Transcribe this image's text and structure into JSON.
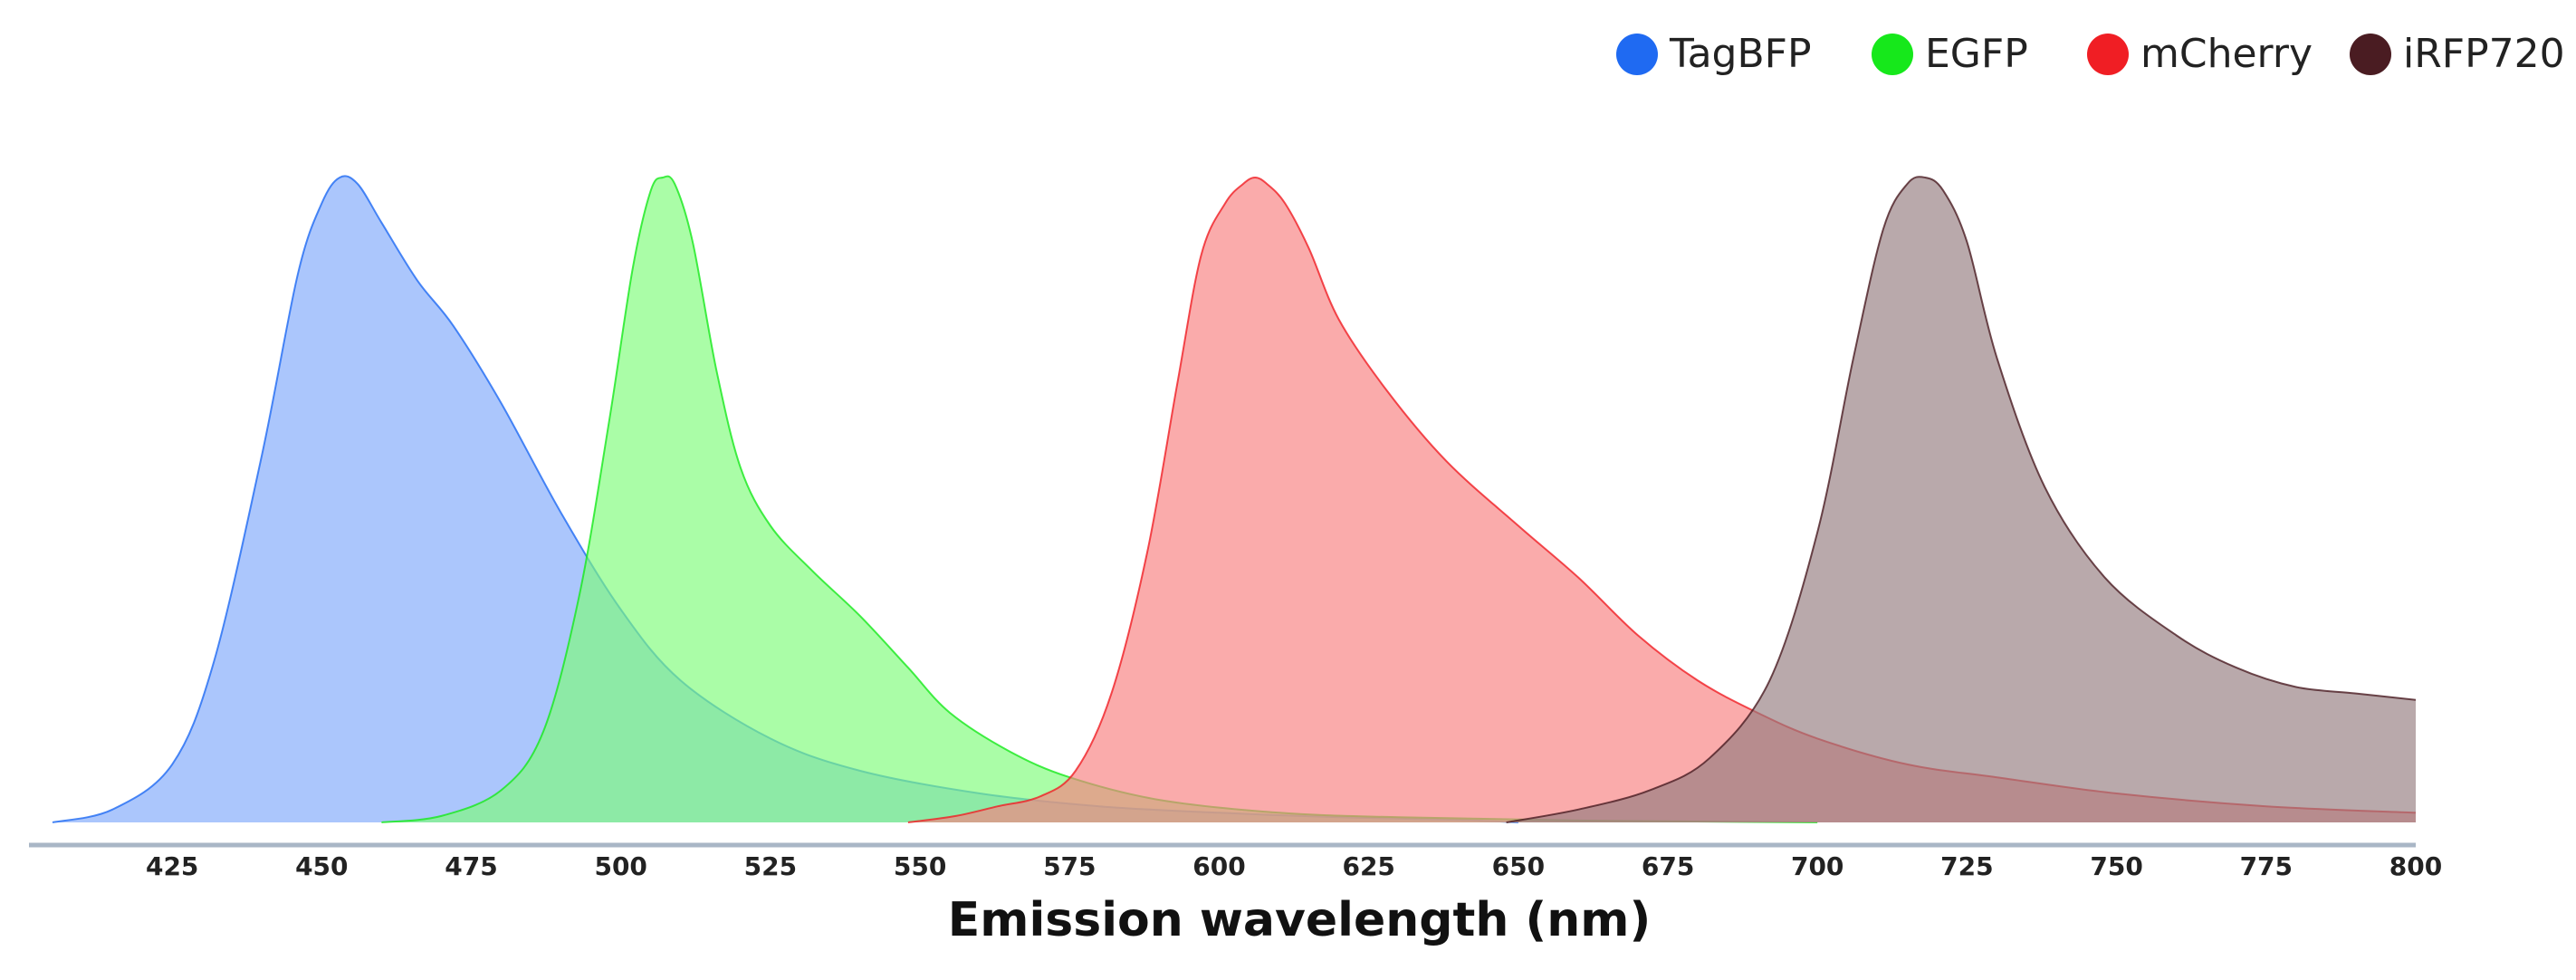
{
  "chart_data": {
    "type": "area",
    "title": "",
    "xlabel": "Emission wavelength (nm)",
    "ylabel": "",
    "xlim": [
      405,
      800
    ],
    "ylim": [
      0,
      1
    ],
    "x_ticks": [
      425,
      450,
      475,
      500,
      525,
      550,
      575,
      600,
      625,
      650,
      675,
      700,
      725,
      750,
      775,
      800
    ],
    "grid": false,
    "legend_position": "top-right",
    "series": [
      {
        "name": "TagBFP",
        "color": "#1f6af2",
        "fill": "#7fa8fb",
        "x": [
          405,
          415,
          425,
          432,
          440,
          446,
          450,
          453,
          456,
          460,
          466,
          472,
          480,
          490,
          500,
          510,
          525,
          540,
          560,
          580,
          600,
          620,
          640,
          650
        ],
        "y": [
          0.0,
          0.02,
          0.09,
          0.25,
          0.57,
          0.85,
          0.96,
          1.0,
          0.99,
          0.93,
          0.84,
          0.77,
          0.65,
          0.48,
          0.33,
          0.22,
          0.13,
          0.08,
          0.045,
          0.025,
          0.015,
          0.008,
          0.004,
          0.0
        ]
      },
      {
        "name": "EGFP",
        "color": "#16e81b",
        "fill": "#7efc7a",
        "x": [
          460,
          470,
          480,
          487,
          493,
          498,
          502,
          505,
          507,
          509,
          512,
          516,
          520,
          525,
          532,
          540,
          548,
          555,
          565,
          575,
          590,
          610,
          630,
          660,
          700
        ],
        "y": [
          0.0,
          0.01,
          0.05,
          0.14,
          0.35,
          0.62,
          0.86,
          0.98,
          1.0,
          0.99,
          0.9,
          0.7,
          0.55,
          0.46,
          0.39,
          0.32,
          0.24,
          0.17,
          0.11,
          0.07,
          0.035,
          0.015,
          0.008,
          0.003,
          0.0
        ]
      },
      {
        "name": "mCherry",
        "color": "#f01e24",
        "fill": "#f87f7f",
        "x": [
          548,
          556,
          563,
          570,
          576,
          582,
          588,
          593,
          597,
          601,
          604,
          606,
          608,
          611,
          615,
          620,
          628,
          638,
          650,
          660,
          670,
          680,
          690,
          700,
          715,
          730,
          750,
          775,
          800
        ],
        "y": [
          0.0,
          0.01,
          0.025,
          0.04,
          0.08,
          0.2,
          0.42,
          0.68,
          0.88,
          0.96,
          0.99,
          1.0,
          0.99,
          0.96,
          0.89,
          0.78,
          0.67,
          0.56,
          0.46,
          0.38,
          0.29,
          0.22,
          0.17,
          0.13,
          0.09,
          0.07,
          0.045,
          0.025,
          0.015
        ]
      },
      {
        "name": "iRFP720",
        "color": "#4a1c22",
        "fill": "#957c7f",
        "x": [
          648,
          660,
          672,
          682,
          692,
          700,
          706,
          711,
          715,
          718,
          721,
          725,
          730,
          738,
          748,
          760,
          770,
          780,
          790,
          800
        ],
        "y": [
          0.0,
          0.02,
          0.05,
          0.1,
          0.22,
          0.45,
          0.72,
          0.92,
          0.99,
          1.0,
          0.98,
          0.9,
          0.72,
          0.52,
          0.38,
          0.29,
          0.24,
          0.21,
          0.2,
          0.19
        ]
      }
    ]
  }
}
